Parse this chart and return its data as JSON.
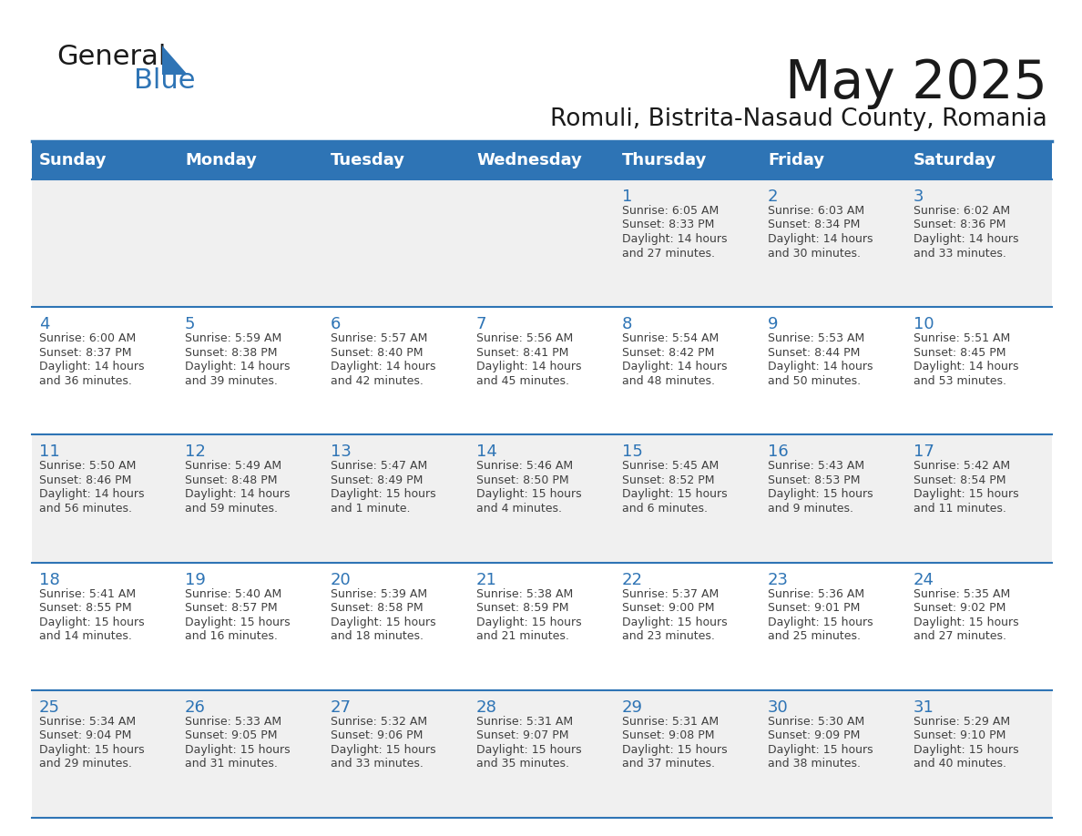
{
  "title": "May 2025",
  "subtitle": "Romuli, Bistrita-Nasaud County, Romania",
  "header_bg_color": "#2E74B5",
  "header_text_color": "#FFFFFF",
  "day_names": [
    "Sunday",
    "Monday",
    "Tuesday",
    "Wednesday",
    "Thursday",
    "Friday",
    "Saturday"
  ],
  "row_bg_colors": [
    "#F0F0F0",
    "#FFFFFF"
  ],
  "cell_border_color": "#2E74B5",
  "day_number_color": "#2E74B5",
  "info_text_color": "#404040",
  "days": [
    {
      "day": 1,
      "col": 4,
      "row": 0,
      "sunrise": "6:05 AM",
      "sunset": "8:33 PM",
      "daylight_hrs": "14",
      "daylight_min": "27 minutes"
    },
    {
      "day": 2,
      "col": 5,
      "row": 0,
      "sunrise": "6:03 AM",
      "sunset": "8:34 PM",
      "daylight_hrs": "14",
      "daylight_min": "30 minutes"
    },
    {
      "day": 3,
      "col": 6,
      "row": 0,
      "sunrise": "6:02 AM",
      "sunset": "8:36 PM",
      "daylight_hrs": "14",
      "daylight_min": "33 minutes"
    },
    {
      "day": 4,
      "col": 0,
      "row": 1,
      "sunrise": "6:00 AM",
      "sunset": "8:37 PM",
      "daylight_hrs": "14",
      "daylight_min": "36 minutes"
    },
    {
      "day": 5,
      "col": 1,
      "row": 1,
      "sunrise": "5:59 AM",
      "sunset": "8:38 PM",
      "daylight_hrs": "14",
      "daylight_min": "39 minutes"
    },
    {
      "day": 6,
      "col": 2,
      "row": 1,
      "sunrise": "5:57 AM",
      "sunset": "8:40 PM",
      "daylight_hrs": "14",
      "daylight_min": "42 minutes"
    },
    {
      "day": 7,
      "col": 3,
      "row": 1,
      "sunrise": "5:56 AM",
      "sunset": "8:41 PM",
      "daylight_hrs": "14",
      "daylight_min": "45 minutes"
    },
    {
      "day": 8,
      "col": 4,
      "row": 1,
      "sunrise": "5:54 AM",
      "sunset": "8:42 PM",
      "daylight_hrs": "14",
      "daylight_min": "48 minutes"
    },
    {
      "day": 9,
      "col": 5,
      "row": 1,
      "sunrise": "5:53 AM",
      "sunset": "8:44 PM",
      "daylight_hrs": "14",
      "daylight_min": "50 minutes"
    },
    {
      "day": 10,
      "col": 6,
      "row": 1,
      "sunrise": "5:51 AM",
      "sunset": "8:45 PM",
      "daylight_hrs": "14",
      "daylight_min": "53 minutes"
    },
    {
      "day": 11,
      "col": 0,
      "row": 2,
      "sunrise": "5:50 AM",
      "sunset": "8:46 PM",
      "daylight_hrs": "14",
      "daylight_min": "56 minutes"
    },
    {
      "day": 12,
      "col": 1,
      "row": 2,
      "sunrise": "5:49 AM",
      "sunset": "8:48 PM",
      "daylight_hrs": "14",
      "daylight_min": "59 minutes"
    },
    {
      "day": 13,
      "col": 2,
      "row": 2,
      "sunrise": "5:47 AM",
      "sunset": "8:49 PM",
      "daylight_hrs": "15",
      "daylight_min": "1 minute"
    },
    {
      "day": 14,
      "col": 3,
      "row": 2,
      "sunrise": "5:46 AM",
      "sunset": "8:50 PM",
      "daylight_hrs": "15",
      "daylight_min": "4 minutes"
    },
    {
      "day": 15,
      "col": 4,
      "row": 2,
      "sunrise": "5:45 AM",
      "sunset": "8:52 PM",
      "daylight_hrs": "15",
      "daylight_min": "6 minutes"
    },
    {
      "day": 16,
      "col": 5,
      "row": 2,
      "sunrise": "5:43 AM",
      "sunset": "8:53 PM",
      "daylight_hrs": "15",
      "daylight_min": "9 minutes"
    },
    {
      "day": 17,
      "col": 6,
      "row": 2,
      "sunrise": "5:42 AM",
      "sunset": "8:54 PM",
      "daylight_hrs": "15",
      "daylight_min": "11 minutes"
    },
    {
      "day": 18,
      "col": 0,
      "row": 3,
      "sunrise": "5:41 AM",
      "sunset": "8:55 PM",
      "daylight_hrs": "15",
      "daylight_min": "14 minutes"
    },
    {
      "day": 19,
      "col": 1,
      "row": 3,
      "sunrise": "5:40 AM",
      "sunset": "8:57 PM",
      "daylight_hrs": "15",
      "daylight_min": "16 minutes"
    },
    {
      "day": 20,
      "col": 2,
      "row": 3,
      "sunrise": "5:39 AM",
      "sunset": "8:58 PM",
      "daylight_hrs": "15",
      "daylight_min": "18 minutes"
    },
    {
      "day": 21,
      "col": 3,
      "row": 3,
      "sunrise": "5:38 AM",
      "sunset": "8:59 PM",
      "daylight_hrs": "15",
      "daylight_min": "21 minutes"
    },
    {
      "day": 22,
      "col": 4,
      "row": 3,
      "sunrise": "5:37 AM",
      "sunset": "9:00 PM",
      "daylight_hrs": "15",
      "daylight_min": "23 minutes"
    },
    {
      "day": 23,
      "col": 5,
      "row": 3,
      "sunrise": "5:36 AM",
      "sunset": "9:01 PM",
      "daylight_hrs": "15",
      "daylight_min": "25 minutes"
    },
    {
      "day": 24,
      "col": 6,
      "row": 3,
      "sunrise": "5:35 AM",
      "sunset": "9:02 PM",
      "daylight_hrs": "15",
      "daylight_min": "27 minutes"
    },
    {
      "day": 25,
      "col": 0,
      "row": 4,
      "sunrise": "5:34 AM",
      "sunset": "9:04 PM",
      "daylight_hrs": "15",
      "daylight_min": "29 minutes"
    },
    {
      "day": 26,
      "col": 1,
      "row": 4,
      "sunrise": "5:33 AM",
      "sunset": "9:05 PM",
      "daylight_hrs": "15",
      "daylight_min": "31 minutes"
    },
    {
      "day": 27,
      "col": 2,
      "row": 4,
      "sunrise": "5:32 AM",
      "sunset": "9:06 PM",
      "daylight_hrs": "15",
      "daylight_min": "33 minutes"
    },
    {
      "day": 28,
      "col": 3,
      "row": 4,
      "sunrise": "5:31 AM",
      "sunset": "9:07 PM",
      "daylight_hrs": "15",
      "daylight_min": "35 minutes"
    },
    {
      "day": 29,
      "col": 4,
      "row": 4,
      "sunrise": "5:31 AM",
      "sunset": "9:08 PM",
      "daylight_hrs": "15",
      "daylight_min": "37 minutes"
    },
    {
      "day": 30,
      "col": 5,
      "row": 4,
      "sunrise": "5:30 AM",
      "sunset": "9:09 PM",
      "daylight_hrs": "15",
      "daylight_min": "38 minutes"
    },
    {
      "day": 31,
      "col": 6,
      "row": 4,
      "sunrise": "5:29 AM",
      "sunset": "9:10 PM",
      "daylight_hrs": "15",
      "daylight_min": "40 minutes"
    }
  ]
}
